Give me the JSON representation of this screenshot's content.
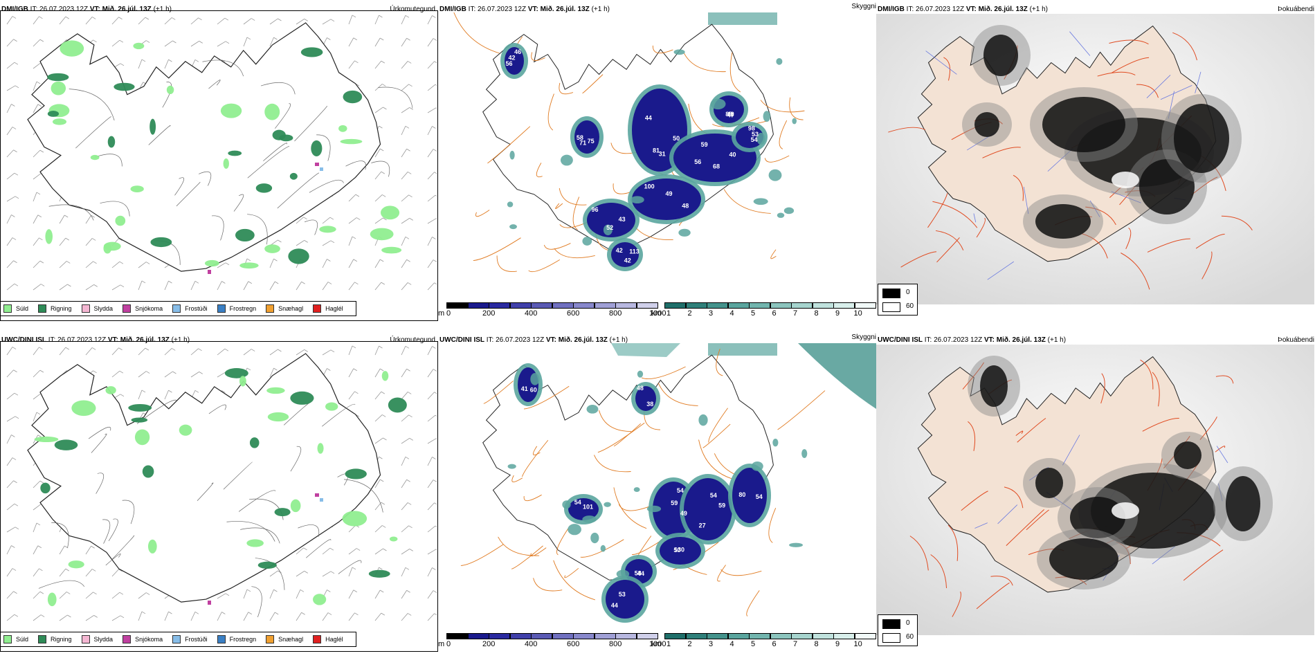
{
  "rows": [
    {
      "model": "DMI/IGB",
      "it_label": "IT:",
      "it_value": "26.07.2023 12Z",
      "vt_label": "VT:",
      "vt_value": "Mið. 26.júl. 13Z",
      "lead": "(+1 h)",
      "panels": {
        "precip": {
          "title": "Úrkomutegund",
          "cloud_labels": []
        },
        "cloud": {
          "title": "Skyggni",
          "cloud_labels": [
            {
              "v": "81"
            },
            {
              "v": "68"
            },
            {
              "v": "49"
            },
            {
              "v": "96"
            },
            {
              "v": "113"
            },
            {
              "v": "56"
            },
            {
              "v": "88"
            },
            {
              "v": "58"
            },
            {
              "v": "53"
            },
            {
              "v": "44"
            },
            {
              "v": "56"
            },
            {
              "v": "48"
            },
            {
              "v": "52"
            },
            {
              "v": "42"
            },
            {
              "v": "46"
            },
            {
              "v": "47"
            },
            {
              "v": "75"
            },
            {
              "v": "54"
            },
            {
              "v": "50"
            },
            {
              "v": "40"
            },
            {
              "v": "100"
            },
            {
              "v": "43"
            },
            {
              "v": "42"
            },
            {
              "v": "42"
            },
            {
              "v": "46"
            },
            {
              "v": "71"
            },
            {
              "v": "98"
            },
            {
              "v": "31"
            },
            {
              "v": "59"
            }
          ]
        },
        "fog": {
          "title": "Þokuábendi"
        }
      }
    },
    {
      "model": "UWC/DINI ISL",
      "it_label": "IT:",
      "it_value": "26.07.2023 12Z",
      "vt_label": "VT:",
      "vt_value": "Mið. 26.júl. 13Z",
      "lead": "(+1 h)",
      "panels": {
        "precip": {
          "title": "Úrkomutegund",
          "cloud_labels": []
        },
        "cloud": {
          "title": "Skyggni",
          "cloud_labels": [
            {
              "v": "59"
            },
            {
              "v": "59"
            },
            {
              "v": "50"
            },
            {
              "v": "44"
            },
            {
              "v": "53"
            },
            {
              "v": "60"
            },
            {
              "v": "54"
            },
            {
              "v": "80"
            },
            {
              "v": "48"
            },
            {
              "v": "54"
            },
            {
              "v": "54"
            },
            {
              "v": "130"
            },
            {
              "v": "58"
            },
            {
              "v": "44"
            },
            {
              "v": "41"
            },
            {
              "v": "101"
            },
            {
              "v": "54"
            },
            {
              "v": "38"
            },
            {
              "v": "49"
            },
            {
              "v": "27"
            }
          ]
        },
        "fog": {
          "title": "Þokuábendi"
        }
      }
    }
  ],
  "precip_legend": [
    {
      "label": "Súld",
      "color": "#90ee90"
    },
    {
      "label": "Rigning",
      "color": "#2e8b57"
    },
    {
      "label": "Slydda",
      "color": "#f4b6d2"
    },
    {
      "label": "Snjókoma",
      "color": "#c040a0"
    },
    {
      "label": "Frostúði",
      "color": "#87bde8"
    },
    {
      "label": "Frostregn",
      "color": "#3a7fc4"
    },
    {
      "label": "Snæhagl",
      "color": "#f0a030"
    },
    {
      "label": "Haglél",
      "color": "#e02020"
    }
  ],
  "cloud_colorbar": {
    "unit_left": "m",
    "ticks_left": [
      "0",
      "200",
      "400",
      "600",
      "800",
      "1000"
    ],
    "unit_right": "km",
    "ticks_right": [
      "1",
      "2",
      "3",
      "4",
      "5",
      "6",
      "7",
      "8",
      "9",
      "10"
    ],
    "colors_left": [
      "#000000",
      "#1a1a8c",
      "#2a2aa0",
      "#4040aa",
      "#5a5ab4",
      "#7070c0",
      "#8888cc",
      "#a0a0d6",
      "#b8b8e0",
      "#d0d0ea"
    ],
    "colors_right": [
      "#1f6f6a",
      "#2f807a",
      "#44938c",
      "#5aa59e",
      "#72b5ae",
      "#8cc5be",
      "#a6d4ce",
      "#c0e2dd",
      "#d8efeb",
      "#f2faf9"
    ]
  },
  "fog_legend": {
    "items": [
      {
        "label": "0",
        "color": "#000000"
      },
      {
        "label": "60",
        "color": "#ffffff"
      }
    ]
  }
}
